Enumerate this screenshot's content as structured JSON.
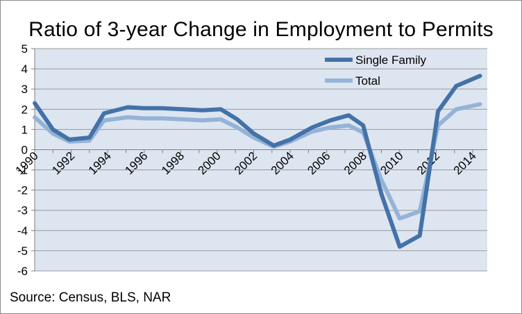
{
  "chart_data": {
    "type": "line",
    "title": "Ratio of 3-year Change in Employment  to Permits",
    "source": "Source: Census,  BLS, NAR",
    "xlabel": "",
    "ylabel": "",
    "x_range": [
      1990,
      2014.8
    ],
    "ylim": [
      -6,
      5
    ],
    "y_ticks": [
      5,
      4,
      3,
      2,
      1,
      0,
      -1,
      -2,
      -3,
      -4,
      -5,
      -6
    ],
    "x_tick_labels": [
      "1990",
      "1992",
      "1994",
      "1996",
      "1998",
      "2000",
      "2002",
      "2004",
      "2006",
      "2008",
      "2010",
      "2012",
      "2014"
    ],
    "grid": true,
    "legend_position": "top-right",
    "plot_background": "#dde5f0",
    "series": [
      {
        "name": "Single Family",
        "color": "#4472a8",
        "points": [
          [
            1990.0,
            2.3
          ],
          [
            1991.0,
            1.0
          ],
          [
            1991.9,
            0.5
          ],
          [
            1993.0,
            0.6
          ],
          [
            1993.8,
            1.8
          ],
          [
            1995.1,
            2.1
          ],
          [
            1996.0,
            2.05
          ],
          [
            1997.0,
            2.05
          ],
          [
            1998.1,
            2.0
          ],
          [
            1999.2,
            1.95
          ],
          [
            2000.2,
            2.0
          ],
          [
            2001.1,
            1.5
          ],
          [
            2002.0,
            0.8
          ],
          [
            2003.1,
            0.2
          ],
          [
            2004.0,
            0.5
          ],
          [
            2005.2,
            1.1
          ],
          [
            2006.2,
            1.45
          ],
          [
            2007.2,
            1.7
          ],
          [
            2008.0,
            1.2
          ],
          [
            2009.0,
            -2.2
          ],
          [
            2010.0,
            -4.8
          ],
          [
            2011.1,
            -4.25
          ],
          [
            2012.1,
            1.9
          ],
          [
            2013.1,
            3.15
          ],
          [
            2014.4,
            3.65
          ]
        ]
      },
      {
        "name": "Total",
        "color": "#95b3d7",
        "points": [
          [
            1990.0,
            1.6
          ],
          [
            1991.0,
            0.8
          ],
          [
            1991.9,
            0.4
          ],
          [
            1993.0,
            0.45
          ],
          [
            1993.8,
            1.45
          ],
          [
            1995.1,
            1.6
          ],
          [
            1996.0,
            1.55
          ],
          [
            1997.0,
            1.55
          ],
          [
            1998.1,
            1.5
          ],
          [
            1999.2,
            1.45
          ],
          [
            2000.2,
            1.5
          ],
          [
            2001.1,
            1.1
          ],
          [
            2002.0,
            0.6
          ],
          [
            2003.1,
            0.15
          ],
          [
            2004.0,
            0.4
          ],
          [
            2005.2,
            0.9
          ],
          [
            2006.2,
            1.1
          ],
          [
            2007.2,
            1.2
          ],
          [
            2008.0,
            0.85
          ],
          [
            2009.0,
            -1.5
          ],
          [
            2010.0,
            -3.4
          ],
          [
            2011.1,
            -3.05
          ],
          [
            2012.1,
            1.2
          ],
          [
            2013.1,
            2.0
          ],
          [
            2014.4,
            2.25
          ]
        ]
      }
    ]
  }
}
